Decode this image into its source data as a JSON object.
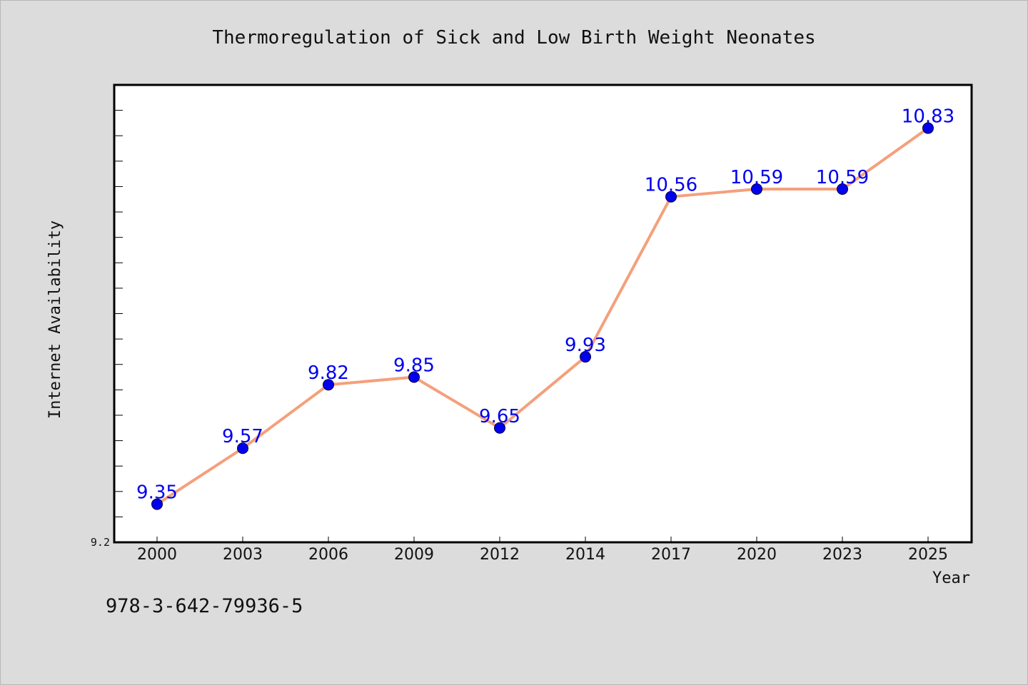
{
  "chart_data": {
    "type": "line",
    "title": "Thermoregulation of Sick and Low Birth Weight Neonates",
    "xlabel": "Year",
    "ylabel": "Internet Availability",
    "categories": [
      "2000",
      "2003",
      "2006",
      "2009",
      "2012",
      "2014",
      "2017",
      "2020",
      "2023",
      "2025"
    ],
    "series": [
      {
        "values": [
          9.35,
          9.57,
          9.82,
          9.85,
          9.65,
          9.93,
          10.56,
          10.59,
          10.59,
          10.83
        ]
      }
    ],
    "data_labels": [
      "9.35",
      "9.57",
      "9.82",
      "9.85",
      "9.65",
      "9.93",
      "10.56",
      "10.59",
      "10.59",
      "10.83"
    ],
    "ylim": [
      9.2,
      11.0
    ],
    "y_tick_labels": [
      "9.2"
    ],
    "grid": false,
    "line_color": "#f4a07c",
    "marker_color": "#0000ee",
    "label_color": "#0000ee"
  },
  "footer": {
    "isbn": "978-3-642-79936-5"
  }
}
